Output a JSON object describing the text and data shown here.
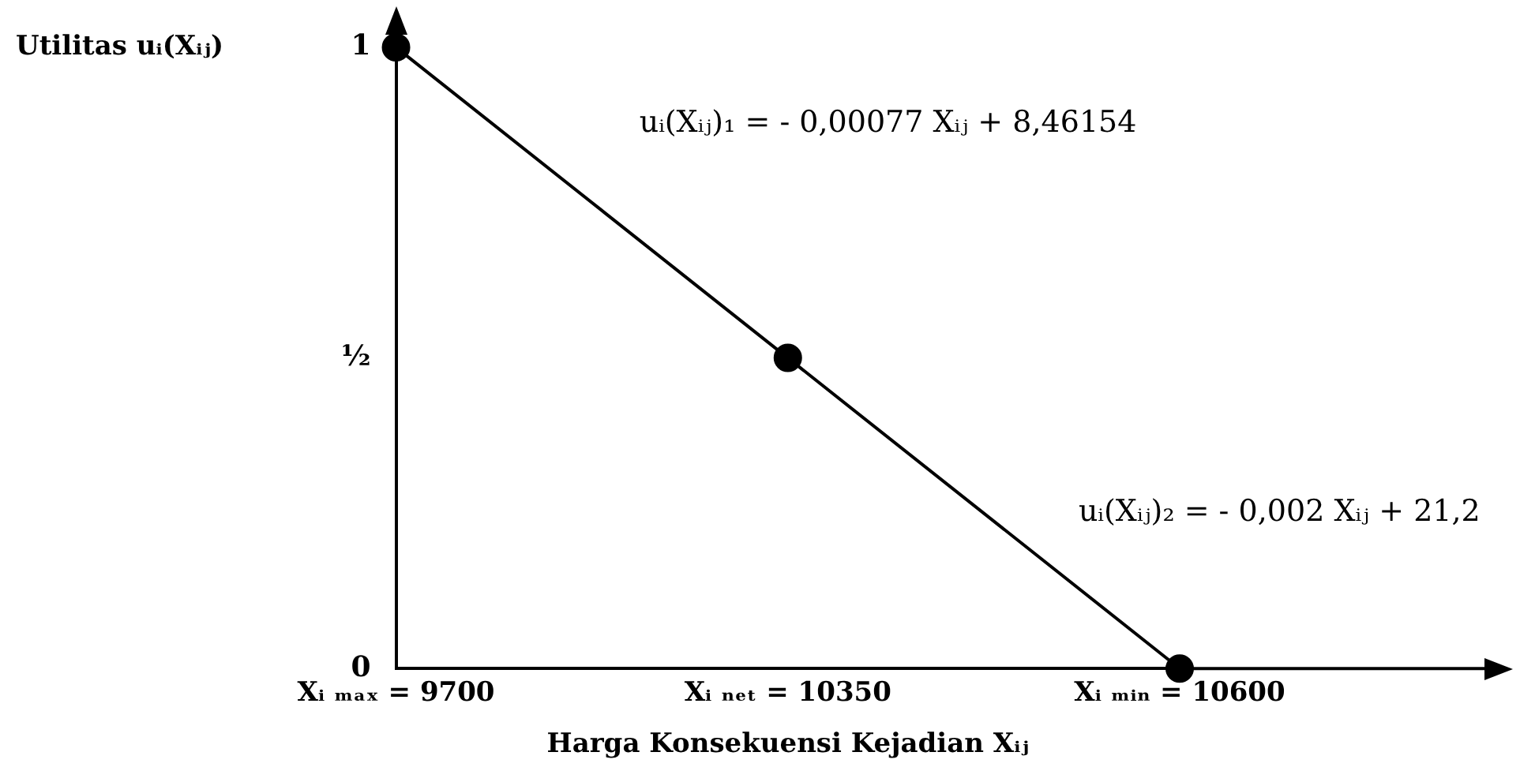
{
  "chart_data": {
    "type": "line",
    "ylabel": "Utilitas uᵢ(Xᵢⱼ)",
    "xlabel": "Harga Konsekuensi Kejadian Xᵢⱼ",
    "categories": [
      "Xᵢ ₘₐₓ = 9700",
      "Xᵢ ₙₑₜ = 10350",
      "Xᵢ ₘᵢₙ = 10600"
    ],
    "series": [
      {
        "color": "#000000",
        "values": [
          1,
          0.5,
          0
        ]
      }
    ],
    "ylim": [
      0,
      1
    ],
    "yticks": [
      0,
      {
        "value": 0.5,
        "label": "½"
      },
      1
    ],
    "marker": "circle",
    "line_style": "solid",
    "grid": false,
    "legend": false,
    "annotations": [
      "uᵢ(Xᵢⱼ)₁ = - 0,00077 Xᵢⱼ + 8,46154",
      "uᵢ(Xᵢⱼ)₂ = - 0,002 Xᵢⱼ + 21,2"
    ]
  }
}
